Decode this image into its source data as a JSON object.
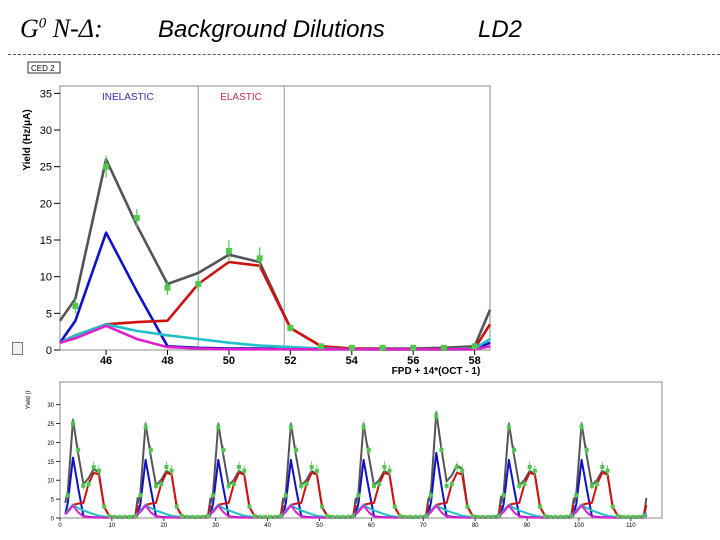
{
  "slide": {
    "title_prefix": "G",
    "title_sup": "0",
    "title_suffix": " N-Δ:",
    "title_main": "Background Dilutions",
    "title_target": "LD2"
  },
  "colors": {
    "total": "#555555",
    "inelastic": "#1010c8",
    "elastic": "#d01010",
    "cyan": "#20c0c8",
    "magenta": "#e020c8",
    "data": "#50c850",
    "inelastic_label": "#3030b0",
    "elastic_label": "#c03050"
  },
  "chart_data": [
    {
      "type": "line",
      "panel_tag": "CED 2",
      "ylabel": "Yield (Hz/μA)",
      "xlabel": "FPD + 14*(OCT - 1)",
      "xlim": [
        44.5,
        58.5
      ],
      "ylim": [
        0,
        36
      ],
      "xticks": [
        46,
        48,
        50,
        52,
        54,
        56,
        58
      ],
      "yticks": [
        0,
        5,
        10,
        15,
        20,
        25,
        30,
        35
      ],
      "regions": [
        {
          "label": "INELASTIC",
          "x_end": 49
        },
        {
          "label": "ELASTIC",
          "x_start": 49,
          "x_end": 51.8
        }
      ],
      "x": [
        44.5,
        45,
        46,
        47,
        48,
        49,
        50,
        51,
        52,
        53,
        54,
        55,
        56,
        57,
        58,
        58.5
      ],
      "series": [
        {
          "key": "total",
          "values": [
            4,
            7,
            26,
            17,
            9,
            10.5,
            13,
            12,
            3,
            0.5,
            0.2,
            0.2,
            0.2,
            0.3,
            0.5,
            5.5
          ]
        },
        {
          "key": "inelastic",
          "values": [
            1,
            4,
            16,
            8,
            0.5,
            0.3,
            0.2,
            0.2,
            0.1,
            0.1,
            0.1,
            0.1,
            0.1,
            0.1,
            0.1,
            1
          ]
        },
        {
          "key": "elastic",
          "values": [
            1,
            2,
            3.5,
            3.8,
            4,
            9,
            12,
            11.5,
            3,
            0.5,
            0.2,
            0.1,
            0.1,
            0.1,
            0.2,
            3.5
          ]
        },
        {
          "key": "cyan",
          "values": [
            1,
            2,
            3.5,
            2.6,
            2,
            1.5,
            1,
            0.6,
            0.4,
            0.2,
            0.1,
            0.1,
            0.1,
            0.1,
            0.2,
            1.5
          ]
        },
        {
          "key": "magenta",
          "values": [
            1,
            1.6,
            3.3,
            1.5,
            0.4,
            0.2,
            0.1,
            0.1,
            0.1,
            0.1,
            0.1,
            0.1,
            0.1,
            0.1,
            0.1,
            0.5
          ]
        }
      ],
      "points": {
        "x": [
          45,
          46,
          47,
          48,
          49,
          50,
          51,
          52,
          53,
          54,
          55,
          56,
          57,
          58
        ],
        "y": [
          6,
          25,
          18,
          8.5,
          9,
          13.5,
          12.5,
          3,
          0.5,
          0.3,
          0.3,
          0.3,
          0.3,
          0.5
        ],
        "err": [
          1,
          1.5,
          1.2,
          1,
          1,
          1.5,
          1.5,
          0.5,
          0.2,
          0.2,
          0.2,
          0.2,
          0.2,
          0.2
        ]
      }
    },
    {
      "type": "line",
      "ylabel": "Yield (I",
      "xlim": [
        0,
        116
      ],
      "ylim": [
        0,
        36
      ],
      "xticks": [
        0,
        10,
        20,
        30,
        40,
        50,
        60,
        70,
        80,
        90,
        100,
        110
      ],
      "yticks": [
        0,
        5,
        10,
        15,
        20,
        25,
        30
      ],
      "period": 14,
      "periods": 8,
      "peak_totals": [
        26,
        25,
        25,
        25,
        25,
        28,
        25,
        25
      ]
    }
  ]
}
